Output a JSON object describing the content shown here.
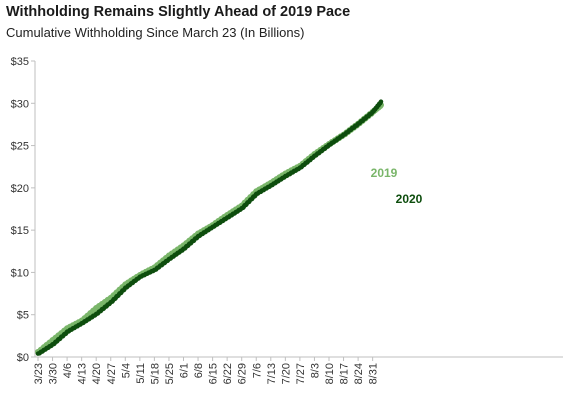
{
  "chart_data": {
    "type": "line",
    "title": "Withholding Remains Slightly Ahead of 2019 Pace",
    "subtitle": "Cumulative Withholding Since March 23 (In Billions)",
    "x_ticks": [
      "3/23",
      "3/30",
      "4/6",
      "4/13",
      "4/20",
      "4/27",
      "5/4",
      "5/11",
      "5/18",
      "5/25",
      "6/1",
      "6/8",
      "6/15",
      "6/22",
      "6/29",
      "7/6",
      "7/13",
      "7/20",
      "7/27",
      "8/3",
      "8/10",
      "8/17",
      "8/24",
      "8/31"
    ],
    "y_ticks": [
      "$0",
      "$5",
      "$10",
      "$15",
      "$20",
      "$25",
      "$30",
      "$35"
    ],
    "ylim": [
      0,
      35
    ],
    "grid": false,
    "series": [
      {
        "name": "2019",
        "color": "#7ab66a",
        "x": [
          "3/23",
          "3/30",
          "4/6",
          "4/13",
          "4/20",
          "4/27",
          "5/4",
          "5/11",
          "5/18",
          "5/25",
          "6/1",
          "6/8",
          "6/15",
          "6/22",
          "6/29",
          "7/6",
          "7/13",
          "7/20",
          "7/27",
          "8/3",
          "8/10",
          "8/17",
          "8/24",
          "8/31",
          "9/4"
        ],
        "values": [
          0.6,
          2.0,
          3.4,
          4.3,
          5.8,
          7.0,
          8.6,
          9.7,
          10.6,
          12.0,
          13.2,
          14.6,
          15.6,
          16.8,
          17.9,
          19.6,
          20.6,
          21.7,
          22.6,
          24.0,
          25.2,
          26.3,
          27.6,
          29.0,
          29.8
        ]
      },
      {
        "name": "2020",
        "color": "#0d4d0d",
        "x": [
          "3/23",
          "3/30",
          "4/6",
          "4/13",
          "4/20",
          "4/27",
          "5/4",
          "5/11",
          "5/18",
          "5/25",
          "6/1",
          "6/8",
          "6/15",
          "6/22",
          "6/29",
          "7/6",
          "7/13",
          "7/20",
          "7/27",
          "8/3",
          "8/10",
          "8/17",
          "8/24",
          "8/31",
          "9/4"
        ],
        "values": [
          0.4,
          1.5,
          3.0,
          4.0,
          5.1,
          6.5,
          8.2,
          9.5,
          10.3,
          11.6,
          12.8,
          14.3,
          15.4,
          16.5,
          17.6,
          19.3,
          20.3,
          21.4,
          22.4,
          23.8,
          25.1,
          26.3,
          27.6,
          29.0,
          30.2
        ]
      }
    ]
  }
}
